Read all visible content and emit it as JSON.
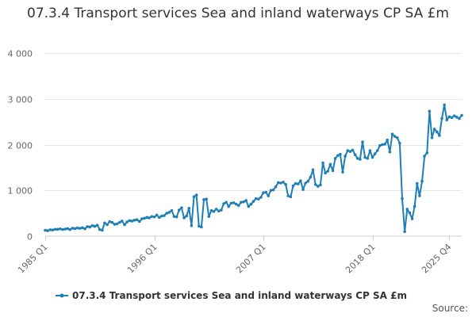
{
  "chart_data": {
    "type": "line",
    "title": "07.3.4 Transport services Sea and inland waterways CP SA £m",
    "xlabel": "",
    "ylabel": "",
    "ylim": [
      0,
      4000
    ],
    "y_ticks": [
      0,
      1000,
      2000,
      3000,
      4000
    ],
    "y_tick_labels": [
      "0",
      "1 000",
      "2 000",
      "3 000",
      "4 000"
    ],
    "x_tick_labels": [
      "1985 Q1",
      "1996 Q1",
      "2007 Q1",
      "2018 Q1",
      "2025 Q4"
    ],
    "x_tick_indices": [
      0,
      44,
      88,
      132,
      163
    ],
    "grid": true,
    "legend_position": "bottom",
    "source_label": "Source:",
    "color": "#1f7fb5",
    "series": [
      {
        "name": "07.3.4 Transport services Sea and inland waterways CP SA £m",
        "values": [
          130,
          120,
          140,
          135,
          150,
          150,
          160,
          145,
          155,
          165,
          145,
          175,
          165,
          180,
          170,
          185,
          160,
          210,
          200,
          230,
          215,
          240,
          145,
          130,
          290,
          250,
          320,
          300,
          260,
          270,
          300,
          330,
          250,
          310,
          340,
          330,
          350,
          360,
          320,
          380,
          390,
          410,
          400,
          430,
          420,
          460,
          410,
          440,
          450,
          500,
          520,
          560,
          430,
          420,
          570,
          620,
          400,
          440,
          610,
          230,
          860,
          900,
          220,
          200,
          800,
          810,
          430,
          560,
          540,
          590,
          550,
          570,
          710,
          740,
          650,
          720,
          730,
          700,
          670,
          740,
          750,
          780,
          650,
          700,
          760,
          820,
          810,
          850,
          950,
          960,
          880,
          1000,
          1010,
          1080,
          1170,
          1160,
          1180,
          1130,
          880,
          860,
          1100,
          1150,
          1140,
          1210,
          1020,
          1160,
          1200,
          1290,
          1450,
          1130,
          1090,
          1120,
          1600,
          1380,
          1420,
          1570,
          1430,
          1700,
          1760,
          1790,
          1400,
          1750,
          1870,
          1850,
          1880,
          1780,
          1700,
          1680,
          2060,
          1720,
          1700,
          1870,
          1720,
          1800,
          1870,
          1980,
          2000,
          2010,
          2100,
          1840,
          2230,
          2180,
          2150,
          2030,
          820,
          100,
          590,
          510,
          380,
          650,
          1150,
          880,
          1200,
          1750,
          1820,
          2730,
          2150,
          2340,
          2280,
          2200,
          2570,
          2870,
          2540,
          2610,
          2590,
          2630,
          2600,
          2570,
          2640
        ]
      }
    ]
  }
}
